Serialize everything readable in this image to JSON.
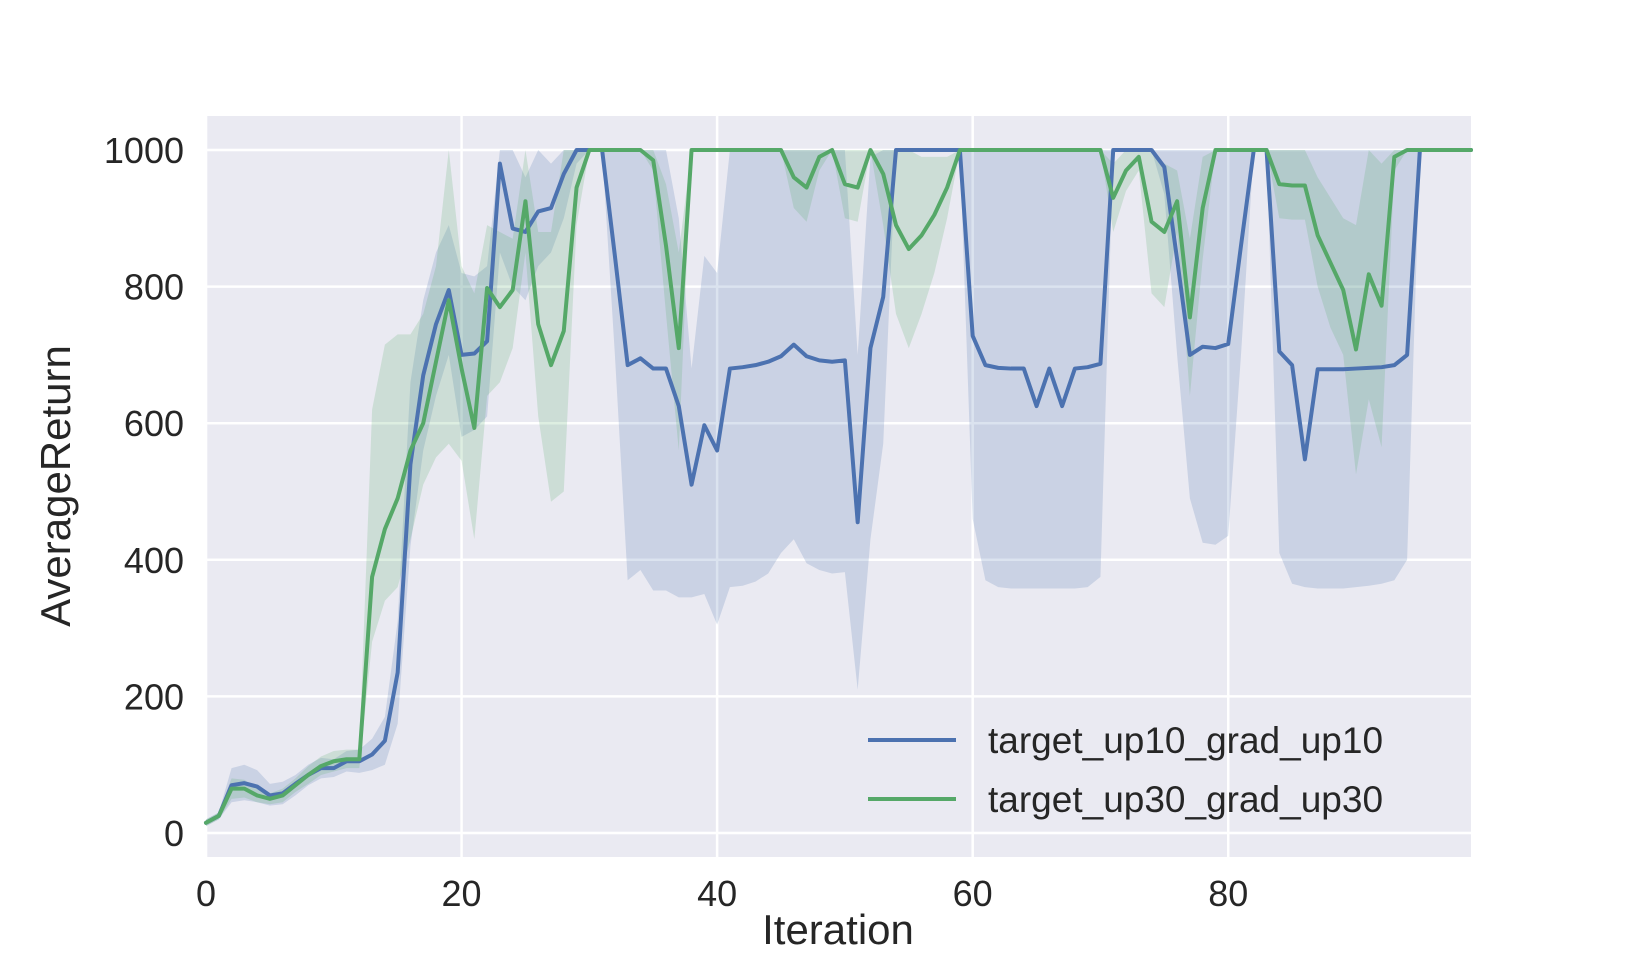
{
  "chart_data": {
    "type": "line",
    "xlabel": "Iteration",
    "ylabel": "AverageReturn",
    "xlim": [
      0,
      99
    ],
    "ylim": [
      -40,
      1050
    ],
    "xticks": [
      0,
      20,
      40,
      60,
      80
    ],
    "yticks": [
      0,
      200,
      400,
      600,
      800,
      1000
    ],
    "grid": true,
    "legend_position": "lower-right",
    "x": [
      0,
      1,
      2,
      3,
      4,
      5,
      6,
      7,
      8,
      9,
      10,
      11,
      12,
      13,
      14,
      15,
      16,
      17,
      18,
      19,
      20,
      21,
      22,
      23,
      24,
      25,
      26,
      27,
      28,
      29,
      30,
      31,
      32,
      33,
      34,
      35,
      36,
      37,
      38,
      39,
      40,
      41,
      42,
      43,
      44,
      45,
      46,
      47,
      48,
      49,
      50,
      51,
      52,
      53,
      54,
      55,
      56,
      57,
      58,
      59,
      60,
      61,
      62,
      63,
      64,
      65,
      66,
      67,
      68,
      69,
      70,
      71,
      72,
      73,
      74,
      75,
      76,
      77,
      78,
      79,
      80,
      81,
      82,
      83,
      84,
      85,
      86,
      87,
      88,
      89,
      90,
      91,
      92,
      93,
      94,
      95,
      96,
      97,
      98,
      99
    ],
    "series": [
      {
        "name": "target_up10_grad_up10",
        "color": "#4c72b0",
        "values": [
          15,
          25,
          70,
          73,
          68,
          55,
          58,
          72,
          85,
          95,
          95,
          105,
          105,
          115,
          135,
          235,
          540,
          670,
          745,
          795,
          700,
          702,
          720,
          980,
          885,
          880,
          910,
          915,
          965,
          1000,
          1000,
          1000,
          845,
          685,
          695,
          680,
          680,
          625,
          510,
          597,
          560,
          680,
          682,
          685,
          690,
          698,
          715,
          698,
          692,
          690,
          692,
          455,
          710,
          785,
          1000,
          1000,
          1000,
          1000,
          1000,
          1000,
          728,
          685,
          681,
          680,
          680,
          625,
          680,
          625,
          680,
          682,
          687,
          1000,
          1000,
          1000,
          1000,
          975,
          840,
          700,
          712,
          710,
          716,
          860,
          1000,
          1000,
          705,
          685,
          547,
          679,
          679,
          679,
          680,
          681,
          682,
          685,
          700,
          1000,
          1000,
          1000,
          1000,
          1000
        ],
        "lower": [
          10,
          20,
          45,
          48,
          45,
          40,
          42,
          55,
          70,
          80,
          82,
          90,
          88,
          92,
          100,
          160,
          420,
          560,
          640,
          700,
          580,
          590,
          610,
          850,
          800,
          780,
          830,
          850,
          900,
          980,
          1000,
          1000,
          700,
          370,
          385,
          355,
          355,
          345,
          345,
          350,
          305,
          360,
          362,
          368,
          380,
          410,
          430,
          395,
          385,
          380,
          382,
          210,
          430,
          570,
          1000,
          1000,
          1000,
          1000,
          1000,
          1000,
          460,
          370,
          360,
          358,
          358,
          358,
          358,
          358,
          358,
          360,
          375,
          1000,
          1000,
          1000,
          1000,
          935,
          700,
          490,
          425,
          422,
          435,
          700,
          1000,
          1000,
          410,
          365,
          360,
          358,
          358,
          358,
          360,
          362,
          365,
          370,
          400,
          1000,
          1000,
          1000,
          1000,
          1000
        ],
        "upper": [
          20,
          30,
          95,
          100,
          92,
          72,
          75,
          85,
          100,
          110,
          108,
          120,
          122,
          138,
          170,
          310,
          660,
          780,
          850,
          890,
          820,
          815,
          830,
          1000,
          1000,
          960,
          1000,
          980,
          1000,
          1000,
          1000,
          1000,
          1000,
          1000,
          1000,
          1000,
          1000,
          900,
          680,
          845,
          820,
          1000,
          1000,
          1000,
          1000,
          1000,
          1000,
          1000,
          1000,
          1000,
          1000,
          700,
          990,
          1000,
          1000,
          1000,
          1000,
          1000,
          1000,
          1000,
          1000,
          1000,
          1000,
          1000,
          1000,
          1000,
          1000,
          1000,
          1000,
          1000,
          1000,
          1000,
          1000,
          1000,
          1000,
          1000,
          1000,
          1000,
          1000,
          1000,
          1000,
          1000,
          1000,
          1000,
          1000,
          1000,
          1000,
          1000,
          1000,
          1000,
          1000,
          1000,
          1000,
          1000,
          1000,
          1000,
          1000,
          1000,
          1000,
          1000
        ]
      },
      {
        "name": "target_up30_grad_up30",
        "color": "#55a868",
        "values": [
          15,
          25,
          65,
          65,
          55,
          50,
          55,
          70,
          85,
          98,
          105,
          108,
          108,
          375,
          445,
          490,
          560,
          600,
          690,
          780,
          680,
          593,
          798,
          770,
          795,
          925,
          745,
          685,
          735,
          945,
          1000,
          1000,
          1000,
          1000,
          1000,
          985,
          860,
          710,
          1000,
          1000,
          1000,
          1000,
          1000,
          1000,
          1000,
          1000,
          960,
          945,
          990,
          1000,
          950,
          945,
          1000,
          965,
          890,
          855,
          875,
          905,
          945,
          1000,
          1000,
          1000,
          1000,
          1000,
          1000,
          1000,
          1000,
          1000,
          1000,
          1000,
          1000,
          930,
          970,
          990,
          895,
          880,
          925,
          755,
          915,
          1000,
          1000,
          1000,
          1000,
          1000,
          950,
          948,
          948,
          875,
          835,
          795,
          708,
          818,
          772,
          990,
          1000,
          1000,
          1000,
          1000,
          1000,
          1000
        ],
        "lower": [
          10,
          20,
          50,
          52,
          45,
          42,
          45,
          60,
          72,
          85,
          90,
          95,
          95,
          280,
          340,
          360,
          430,
          510,
          550,
          570,
          545,
          430,
          640,
          660,
          710,
          850,
          610,
          485,
          500,
          890,
          1000,
          1000,
          1000,
          1000,
          1000,
          970,
          760,
          560,
          1000,
          1000,
          1000,
          1000,
          1000,
          1000,
          1000,
          1000,
          915,
          895,
          970,
          1000,
          900,
          895,
          1000,
          890,
          760,
          710,
          760,
          820,
          900,
          1000,
          1000,
          1000,
          1000,
          1000,
          1000,
          1000,
          1000,
          1000,
          1000,
          1000,
          1000,
          880,
          940,
          970,
          790,
          770,
          880,
          640,
          840,
          1000,
          1000,
          1000,
          1000,
          1000,
          900,
          898,
          898,
          800,
          740,
          700,
          525,
          635,
          565,
          970,
          1000,
          1000,
          1000,
          1000,
          1000,
          1000
        ],
        "upper": [
          20,
          30,
          80,
          78,
          65,
          58,
          65,
          80,
          98,
          112,
          120,
          122,
          122,
          620,
          715,
          730,
          730,
          760,
          830,
          1000,
          830,
          790,
          890,
          880,
          870,
          1000,
          880,
          880,
          1000,
          1000,
          1000,
          1000,
          1000,
          1000,
          1000,
          1000,
          950,
          850,
          1000,
          1000,
          1000,
          1000,
          1000,
          1000,
          1000,
          1000,
          1000,
          1000,
          1000,
          1000,
          1000,
          1000,
          1000,
          1000,
          1000,
          1000,
          990,
          990,
          990,
          1000,
          1000,
          1000,
          1000,
          1000,
          1000,
          1000,
          1000,
          1000,
          1000,
          1000,
          1000,
          980,
          1000,
          1000,
          1000,
          980,
          970,
          870,
          990,
          1000,
          1000,
          1000,
          1000,
          1000,
          1000,
          1000,
          1000,
          960,
          930,
          900,
          890,
          1000,
          980,
          1000,
          1000,
          1000,
          1000,
          1000,
          1000,
          1000
        ]
      }
    ]
  }
}
